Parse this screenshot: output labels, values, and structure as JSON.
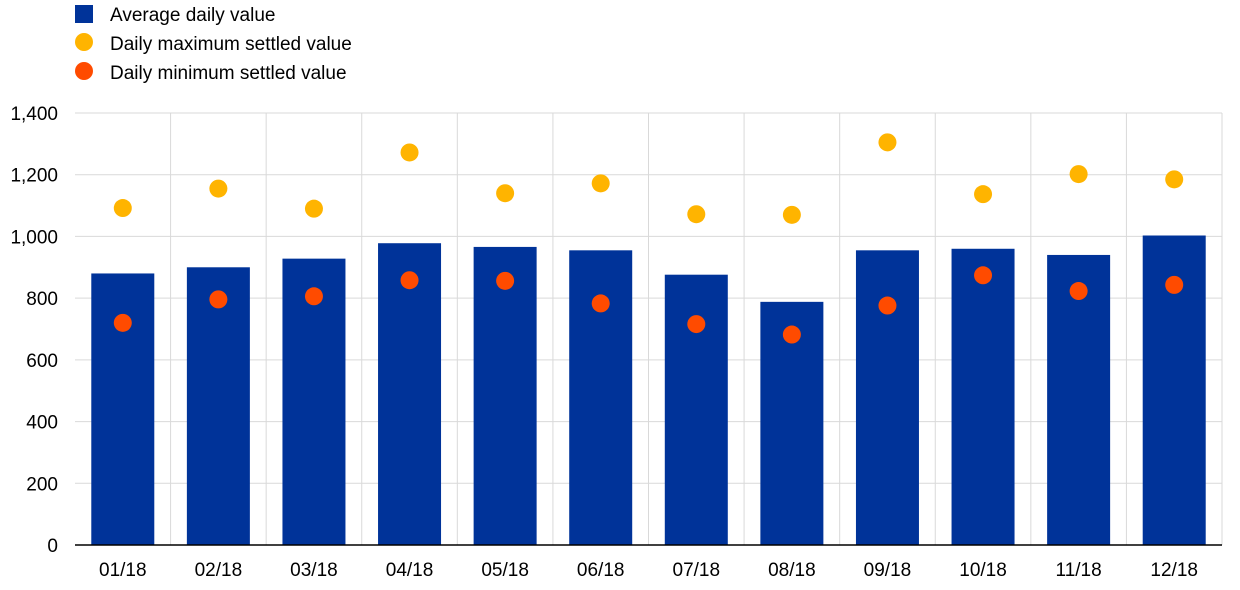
{
  "chart_data": {
    "type": "bar",
    "categories": [
      "01/18",
      "02/18",
      "03/18",
      "04/18",
      "05/18",
      "06/18",
      "07/18",
      "08/18",
      "09/18",
      "10/18",
      "11/18",
      "12/18"
    ],
    "series": [
      {
        "name": "Average daily value",
        "kind": "bar",
        "values": [
          880,
          900,
          928,
          978,
          966,
          955,
          876,
          788,
          955,
          960,
          940,
          1003
        ]
      },
      {
        "name": "Daily maximum settled value",
        "kind": "dot",
        "values": [
          1092,
          1155,
          1090,
          1272,
          1140,
          1172,
          1072,
          1070,
          1305,
          1137,
          1202,
          1185
        ]
      },
      {
        "name": "Daily minimum settled value",
        "kind": "dot",
        "values": [
          720,
          796,
          806,
          858,
          856,
          783,
          716,
          682,
          776,
          874,
          823,
          843
        ]
      }
    ],
    "yticks": [
      "0",
      "200",
      "400",
      "600",
      "800",
      "1,000",
      "1,200",
      "1,400"
    ],
    "ylim": [
      0,
      1400
    ],
    "grid": true,
    "legend_position": "top-left",
    "colors": {
      "Average daily value": "#003399",
      "Daily maximum settled value": "#FFB400",
      "Daily minimum settled value": "#FF4B00",
      "grid": "#D9D9D9",
      "axis": "#000000"
    }
  }
}
